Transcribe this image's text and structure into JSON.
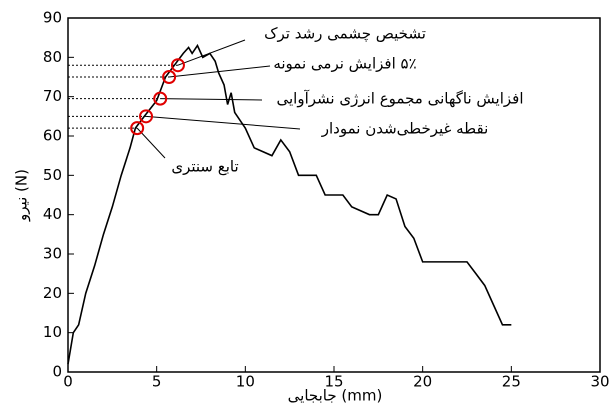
{
  "chart_data": {
    "type": "line",
    "x_label": "جابجایی (mm)",
    "y_label": "نیرو (N)",
    "xlim": [
      0,
      30
    ],
    "xticks": [
      0,
      5,
      10,
      15,
      20,
      25,
      30
    ],
    "ylim": [
      0,
      90
    ],
    "yticks": [
      0,
      10,
      20,
      30,
      40,
      50,
      60,
      70,
      80,
      90
    ],
    "color": "#000000",
    "x": [
      0,
      0.3,
      0.6,
      1,
      1.5,
      2,
      2.5,
      3,
      3.5,
      3.8,
      4.3,
      5,
      5.5,
      6,
      6.5,
      6.8,
      7,
      7.3,
      7.6,
      8,
      8.3,
      8.5,
      8.8,
      9,
      9.2,
      9.4,
      10,
      10.5,
      11,
      11.5,
      12,
      12.5,
      13,
      14,
      14.5,
      15.5,
      16,
      17,
      17.5,
      18,
      18.5,
      19,
      19.5,
      20,
      21,
      22.5,
      23,
      23.5,
      24,
      24.5,
      25
    ],
    "values": [
      2,
      10,
      12,
      20,
      27,
      35,
      42,
      50,
      57,
      62,
      65,
      69,
      75,
      78,
      81,
      82.5,
      81,
      83,
      80,
      81,
      79,
      76,
      73,
      68,
      71,
      66,
      62,
      57,
      56,
      55,
      59,
      56,
      50,
      50,
      45,
      45,
      42,
      40,
      40,
      45,
      44,
      37,
      34,
      28,
      28,
      28,
      25,
      22,
      17,
      12,
      12
    ],
    "annotations": [
      {
        "text": "تشخیص چشمی رشد ترک",
        "x": 6.2,
        "y": 78
      },
      {
        "text": "۵٪ افزایش نرمی نمونه",
        "x": 5.7,
        "y": 75
      },
      {
        "text": "افزایش ناگهانی مجموع انرژی نشرآوایی",
        "x": 5.2,
        "y": 69.5
      },
      {
        "text": "نقطه غیرخطی‌شدن نمودار",
        "x": 4.4,
        "y": 65
      },
      {
        "text": "تابع سنتری",
        "x": 3.9,
        "y": 62
      }
    ]
  }
}
